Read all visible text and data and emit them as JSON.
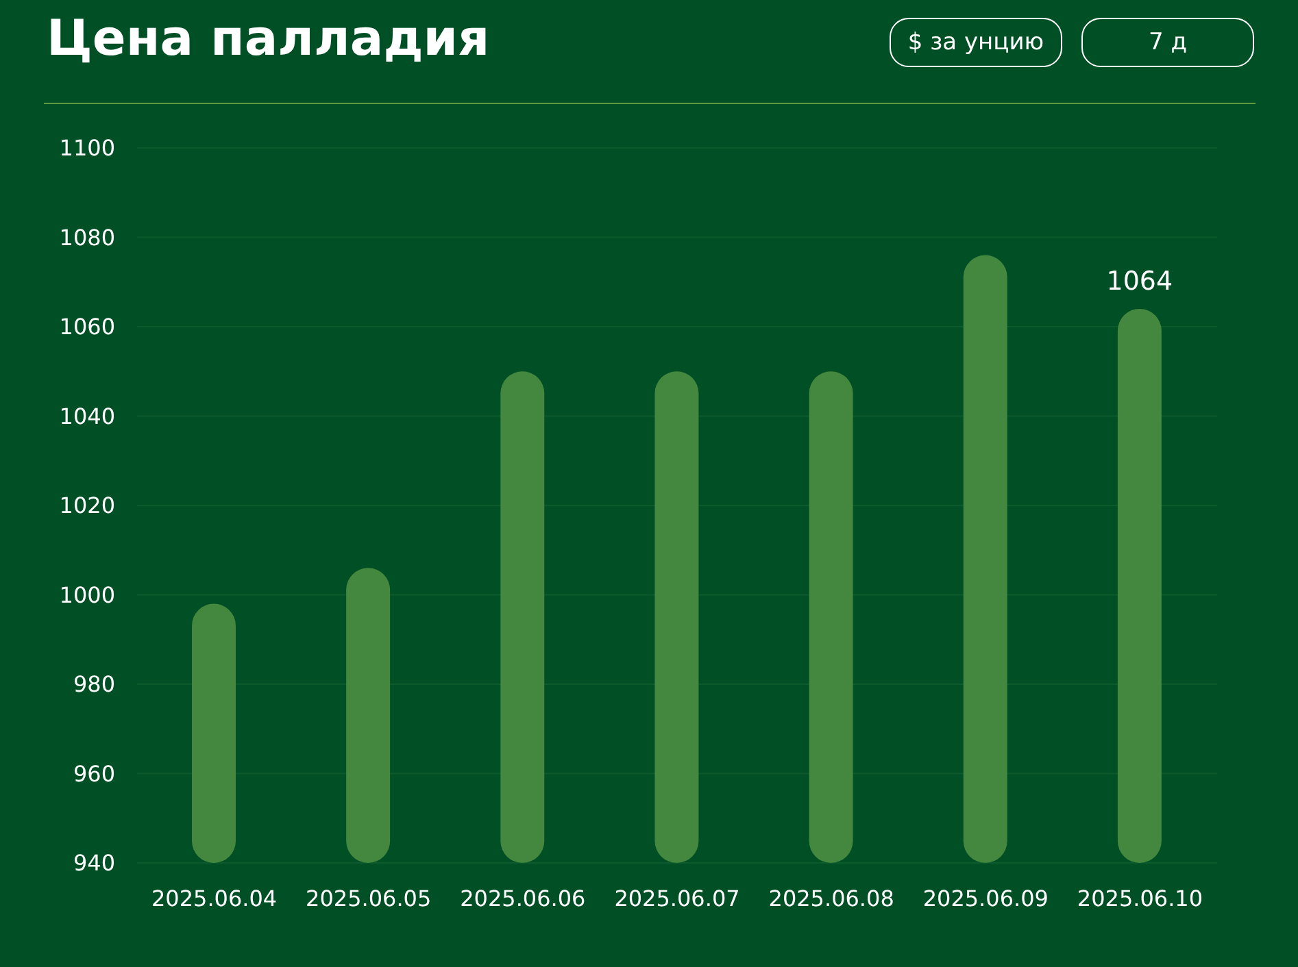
{
  "chart_data": {
    "type": "bar",
    "title": "Цена палладия",
    "annotations": [
      "$ за унцию",
      "7 д"
    ],
    "categories": [
      "2025.06.04",
      "2025.06.05",
      "2025.06.06",
      "2025.06.07",
      "2025.06.08",
      "2025.06.09",
      "2025.06.10"
    ],
    "values": [
      998,
      1006,
      1050,
      1050,
      1050,
      1076,
      1064
    ],
    "value_labels": [
      null,
      null,
      null,
      null,
      null,
      null,
      "1064"
    ],
    "color": "#43883e",
    "ylim": [
      940,
      1100
    ],
    "yticks": [
      940,
      960,
      980,
      1000,
      1020,
      1040,
      1060,
      1080,
      1100
    ],
    "grid": "y"
  }
}
